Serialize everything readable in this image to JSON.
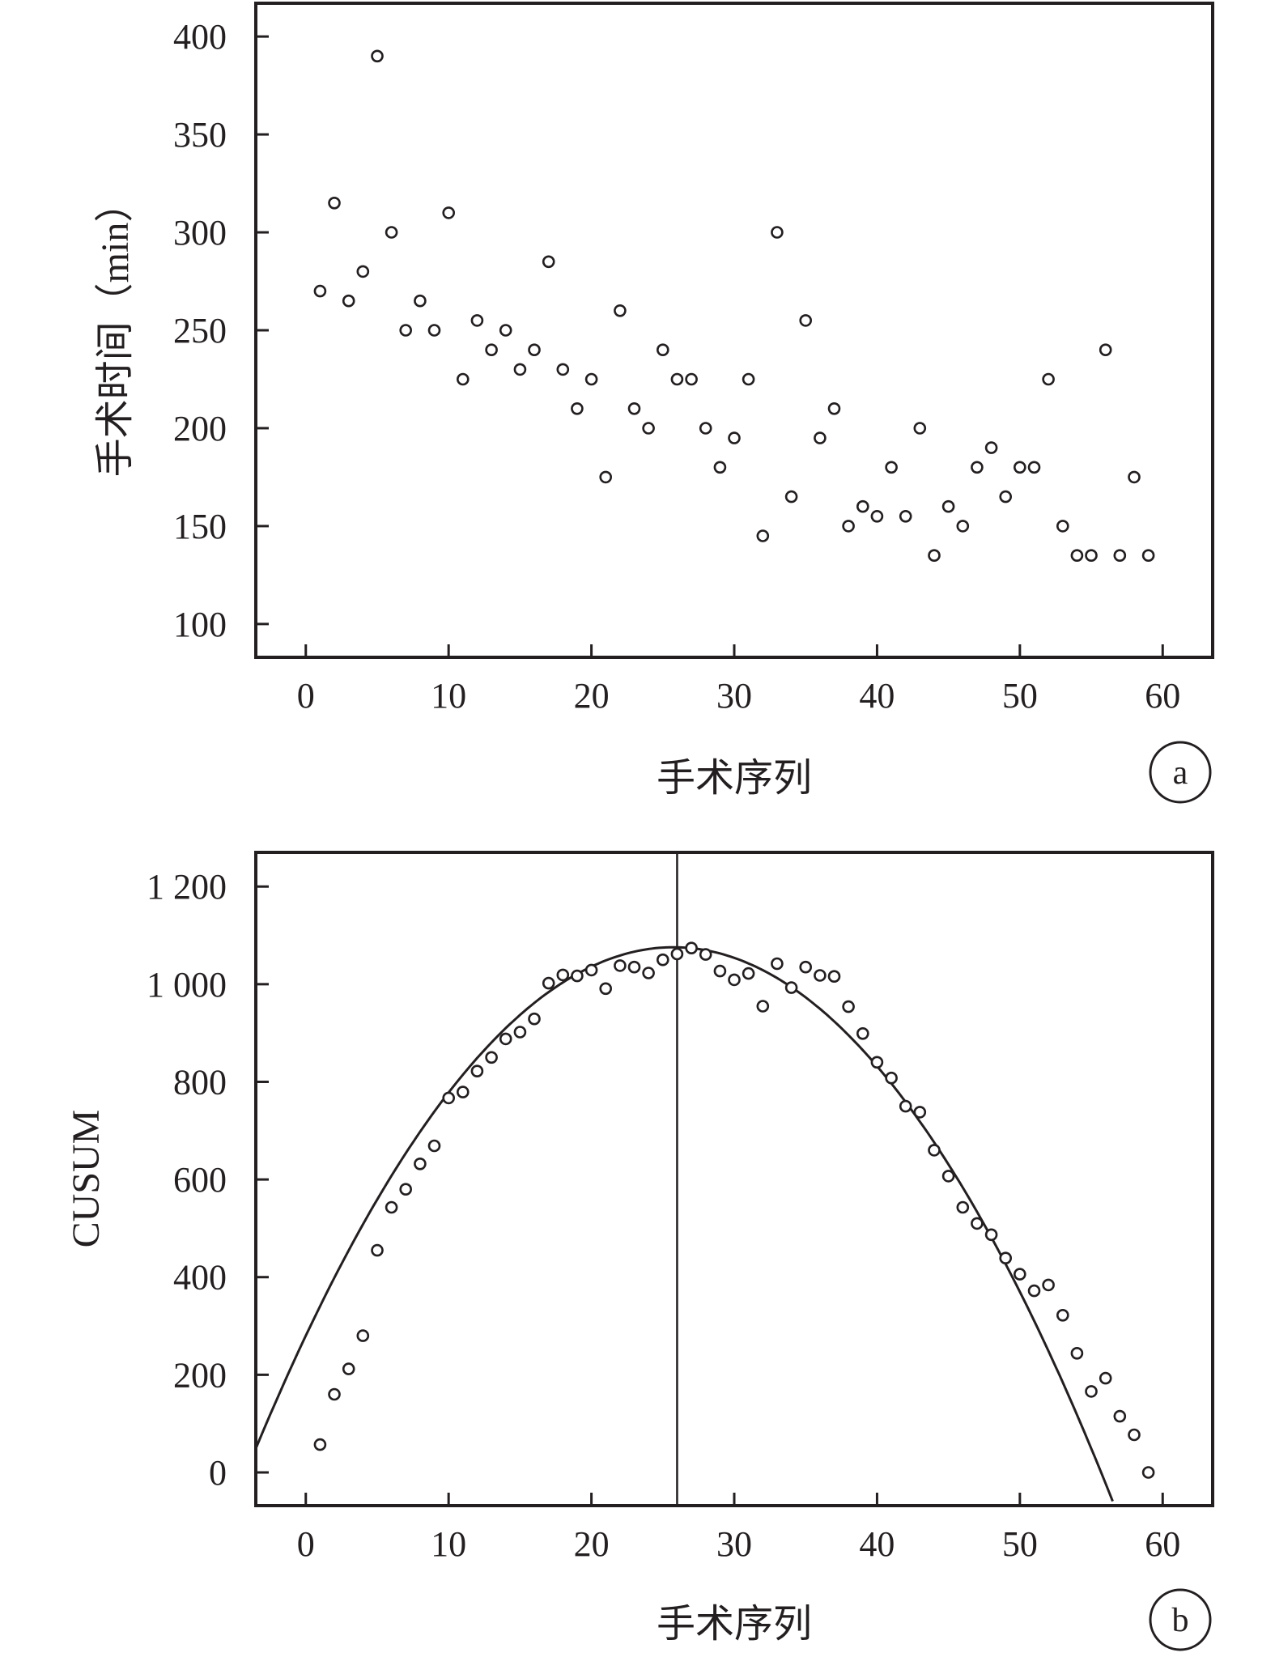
{
  "chart_data": [
    {
      "type": "scatter",
      "panel_label": "a",
      "xlabel": "手术序列",
      "ylabel": "手术时间（min）",
      "xlim": [
        -3.5,
        63.5
      ],
      "ylim": [
        83,
        417
      ],
      "xticks": [
        0,
        10,
        20,
        30,
        40,
        50,
        60
      ],
      "yticks": [
        100,
        150,
        200,
        250,
        300,
        350,
        400
      ],
      "grid": false,
      "series": [
        {
          "marker": "open-circle",
          "x": [
            1,
            2,
            3,
            4,
            5,
            6,
            7,
            8,
            9,
            10,
            11,
            12,
            13,
            14,
            15,
            16,
            17,
            18,
            19,
            20,
            21,
            22,
            23,
            24,
            25,
            26,
            27,
            28,
            29,
            30,
            31,
            32,
            33,
            34,
            35,
            36,
            37,
            38,
            39,
            40,
            41,
            42,
            43,
            44,
            45,
            46,
            47,
            48,
            49,
            50,
            51,
            52,
            53,
            54,
            55,
            56,
            57,
            58,
            59
          ],
          "y": [
            270,
            315,
            265,
            280,
            390,
            300,
            250,
            265,
            250,
            310,
            225,
            255,
            240,
            250,
            230,
            240,
            285,
            230,
            210,
            225,
            175,
            260,
            210,
            200,
            240,
            225,
            225,
            200,
            180,
            195,
            225,
            145,
            300,
            165,
            255,
            195,
            210,
            150,
            160,
            155,
            180,
            155,
            200,
            135,
            160,
            150,
            180,
            190,
            165,
            180,
            180,
            225,
            150,
            135,
            135,
            240,
            135,
            175,
            135
          ]
        }
      ]
    },
    {
      "type": "scatter",
      "panel_label": "b",
      "xlabel": "手术序列",
      "ylabel": "CUSUM",
      "xlim": [
        -3.5,
        63.5
      ],
      "ylim": [
        -68,
        1270
      ],
      "xticks": [
        0,
        10,
        20,
        30,
        40,
        50,
        60
      ],
      "yticks": [
        0,
        200,
        400,
        600,
        800,
        1000,
        1200
      ],
      "ytick_labels": [
        "0",
        "200",
        "400",
        "600",
        "800",
        "1 000",
        "1 200"
      ],
      "grid": false,
      "vertical_line_x": 26,
      "fit_curve": {
        "type": "quadratic",
        "coefficients": [
          -1.2,
          61.8,
          280
        ]
      },
      "series": [
        {
          "marker": "open-circle",
          "x": [
            1,
            2,
            3,
            4,
            5,
            6,
            7,
            8,
            9,
            10,
            11,
            12,
            13,
            14,
            15,
            16,
            17,
            18,
            19,
            20,
            21,
            22,
            23,
            24,
            25,
            26,
            27,
            28,
            29,
            30,
            31,
            32,
            33,
            34,
            35,
            36,
            37,
            38,
            39,
            40,
            41,
            42,
            43,
            44,
            45,
            46,
            47,
            48,
            49,
            50,
            51,
            52,
            53,
            54,
            55,
            56,
            57,
            58,
            59
          ],
          "y": [
            57,
            160,
            212,
            280,
            455,
            543,
            580,
            632,
            669,
            767,
            779,
            822,
            850,
            888,
            902,
            929,
            1002,
            1019,
            1017,
            1029,
            991,
            1038,
            1035,
            1023,
            1050,
            1062,
            1074,
            1061,
            1027,
            1009,
            1022,
            955,
            1042,
            993,
            1035,
            1018,
            1016,
            954,
            899,
            840,
            808,
            750,
            738,
            660,
            607,
            543,
            510,
            487,
            439,
            406,
            372,
            384,
            322,
            244,
            166,
            193,
            115,
            77,
            0
          ]
        }
      ]
    }
  ]
}
